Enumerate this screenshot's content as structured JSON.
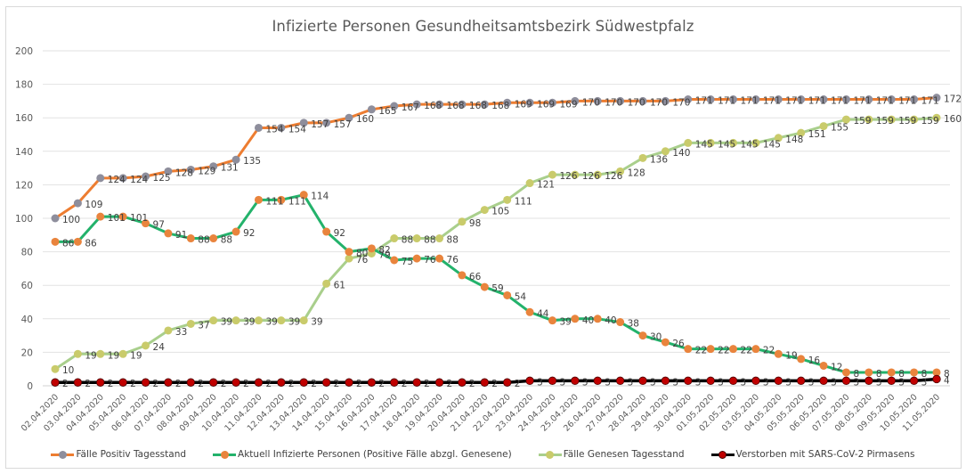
{
  "chart_data": {
    "type": "line",
    "title": "Infizierte Personen Gesundheitsamtsbezirk Südwestpfalz",
    "xlabel": "",
    "ylabel": "",
    "ylim": [
      0,
      200
    ],
    "yticks": [
      0,
      20,
      40,
      60,
      80,
      100,
      120,
      140,
      160,
      180,
      200
    ],
    "grid": true,
    "legend_position": "bottom",
    "x": [
      "02.04.2020",
      "03.04.2020",
      "04.04.2020",
      "05.04.2020",
      "06.04.2020",
      "07.04.2020",
      "08.04.2020",
      "09.04.2020",
      "10.04.2020",
      "11.04.2020",
      "12.04.2020",
      "13.04.2020",
      "14.04.2020",
      "15.04.2020",
      "16.04.2020",
      "17.04.2020",
      "18.04.2020",
      "19.04.2020",
      "20.04.2020",
      "21.04.2020",
      "22.04.2020",
      "23.04.2020",
      "24.04.2020",
      "25.04.2020",
      "26.04.2020",
      "27.04.2020",
      "28.04.2020",
      "29.04.2020",
      "30.04.2020",
      "01.05.2020",
      "02.05.2020",
      "03.05.2020",
      "04.05.2020",
      "05.05.2020",
      "06.05.2020",
      "07.05.2020",
      "08.05.2020",
      "09.05.2020",
      "10.05.2020",
      "11.05.2020"
    ],
    "series": [
      {
        "name": "Fälle Positiv Tagesstand",
        "line_color": "#ED7D31",
        "marker_color": "#8E8E9C",
        "values": [
          100,
          109,
          124,
          124,
          125,
          128,
          129,
          131,
          135,
          154,
          154,
          157,
          157,
          160,
          165,
          167,
          168,
          168,
          168,
          168,
          169,
          169,
          169,
          170,
          170,
          170,
          170,
          170,
          171,
          171,
          171,
          171,
          171,
          171,
          171,
          171,
          171,
          171,
          171,
          172
        ]
      },
      {
        "name": "Aktuell Infizierte Personen (Positive Fälle abzgl. Genesene)",
        "line_color": "#23B26B",
        "marker_color": "#E9843D",
        "values": [
          86,
          86,
          101,
          101,
          97,
          91,
          88,
          88,
          92,
          111,
          111,
          114,
          92,
          80,
          82,
          75,
          76,
          76,
          66,
          59,
          54,
          44,
          39,
          40,
          40,
          38,
          30,
          26,
          22,
          22,
          22,
          22,
          19,
          16,
          12,
          8,
          8,
          8,
          8,
          8
        ]
      },
      {
        "name": "Fälle Genesen Tagesstand",
        "line_color": "#A9CF8C",
        "marker_color": "#C9CB6B",
        "values": [
          10,
          19,
          19,
          19,
          24,
          33,
          37,
          39,
          39,
          39,
          39,
          39,
          61,
          76,
          79,
          88,
          88,
          88,
          98,
          105,
          111,
          121,
          126,
          126,
          126,
          128,
          136,
          140,
          145,
          145,
          145,
          145,
          148,
          151,
          155,
          159,
          159,
          159,
          159,
          160
        ]
      },
      {
        "name": "Verstorben mit SARS-CoV-2 Pirmasens",
        "line_color": "#000000",
        "marker_color": "#C00000",
        "values": [
          2,
          2,
          2,
          2,
          2,
          2,
          2,
          2,
          2,
          2,
          2,
          2,
          2,
          2,
          2,
          2,
          2,
          2,
          2,
          2,
          2,
          3,
          3,
          3,
          3,
          3,
          3,
          3,
          3,
          3,
          3,
          3,
          3,
          3,
          3,
          3,
          3,
          3,
          3,
          4
        ]
      }
    ]
  }
}
